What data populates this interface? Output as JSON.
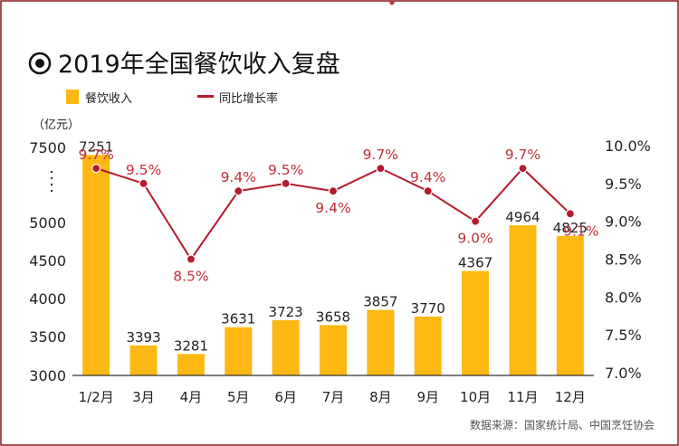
{
  "chart_data": {
    "type": "bar",
    "title": "2019年全国餐饮收入复盘",
    "categories": [
      "1/2月",
      "3月",
      "4月",
      "5月",
      "6月",
      "7月",
      "8月",
      "9月",
      "10月",
      "11月",
      "12月"
    ],
    "series": [
      {
        "name": "餐饮收入",
        "type": "bar",
        "axis": "left",
        "values": [
          7251,
          3393,
          3281,
          3631,
          3723,
          3658,
          3857,
          3770,
          4367,
          4964,
          4825
        ],
        "labels": [
          "7251",
          "3393",
          "3281",
          "3631",
          "3723",
          "3658",
          "3857",
          "3770",
          "4367",
          "4964",
          "4825"
        ]
      },
      {
        "name": "同比增长率",
        "type": "line",
        "axis": "right",
        "values": [
          9.7,
          9.5,
          8.5,
          9.4,
          9.5,
          9.4,
          9.7,
          9.4,
          9.0,
          9.7,
          9.1
        ],
        "labels": [
          "9.7%",
          "9.5%",
          "8.5%",
          "9.4%",
          "9.5%",
          "9.4%",
          "9.7%",
          "9.4%",
          "9.0%",
          "9.7%",
          "9.1%"
        ]
      }
    ],
    "y_left": {
      "unit_label": "（亿元）",
      "ticks": [
        "7500",
        "5000",
        "4500",
        "4000",
        "3500",
        "3000"
      ],
      "tick_values": [
        7500,
        5000,
        4500,
        4000,
        3500,
        3000
      ],
      "axis_break": true,
      "range": [
        3000,
        7500
      ]
    },
    "y_right": {
      "ticks": [
        "10.0%",
        "9.5%",
        "9.0%",
        "8.5%",
        "8.0%",
        "7.5%",
        "7.0%"
      ],
      "tick_values": [
        10.0,
        9.5,
        9.0,
        8.5,
        8.0,
        7.5,
        7.0
      ],
      "range": [
        7.0,
        10.0
      ]
    },
    "legend": {
      "placement": "top-left"
    },
    "source": "数据来源：国家统计局、中国烹饪协会",
    "grid": false
  },
  "colors": {
    "bar": "#FDB813",
    "line": "#B5192B",
    "label_red": "#C0303A",
    "text": "#222222",
    "border": "#8B1A1A",
    "source": "#555555"
  }
}
